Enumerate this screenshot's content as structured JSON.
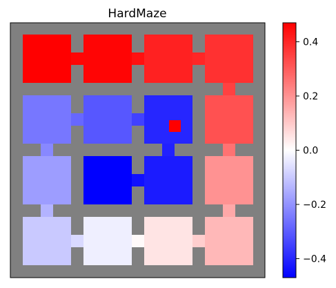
{
  "chart_data": {
    "type": "heatmap",
    "title": "HardMaze",
    "xlabel": "",
    "ylabel": "",
    "grid": false,
    "legend": "colorbar-right",
    "colormap": "bwr",
    "clim": [
      -0.47,
      0.47
    ],
    "colorbar_ticks": [
      {
        "value": 0.4,
        "label": "0.4"
      },
      {
        "value": 0.2,
        "label": "0.2"
      },
      {
        "value": 0.0,
        "label": "0.0"
      },
      {
        "value": -0.2,
        "label": "−0.2"
      },
      {
        "value": -0.4,
        "label": "−0.4"
      }
    ],
    "rows": 4,
    "cols": 4,
    "room_values": [
      [
        0.47,
        0.46,
        0.41,
        0.38
      ],
      [
        -0.25,
        -0.31,
        -0.4,
        0.32
      ],
      [
        -0.18,
        -0.47,
        -0.42,
        0.2
      ],
      [
        -0.1,
        -0.03,
        0.05,
        0.13
      ]
    ],
    "doors": [
      {
        "from": [
          0,
          0
        ],
        "to": [
          0,
          1
        ],
        "value": 0.46
      },
      {
        "from": [
          0,
          1
        ],
        "to": [
          0,
          2
        ],
        "value": 0.44
      },
      {
        "from": [
          0,
          2
        ],
        "to": [
          0,
          3
        ],
        "value": 0.4
      },
      {
        "from": [
          0,
          3
        ],
        "to": [
          1,
          3
        ],
        "value": 0.35
      },
      {
        "from": [
          1,
          0
        ],
        "to": [
          1,
          1
        ],
        "value": -0.28
      },
      {
        "from": [
          1,
          1
        ],
        "to": [
          1,
          2
        ],
        "value": -0.35
      },
      {
        "from": [
          1,
          0
        ],
        "to": [
          2,
          0
        ],
        "value": -0.22
      },
      {
        "from": [
          1,
          2
        ],
        "to": [
          2,
          2
        ],
        "value": -0.41
      },
      {
        "from": [
          1,
          3
        ],
        "to": [
          2,
          3
        ],
        "value": 0.26
      },
      {
        "from": [
          2,
          1
        ],
        "to": [
          2,
          2
        ],
        "value": -0.44
      },
      {
        "from": [
          2,
          0
        ],
        "to": [
          3,
          0
        ],
        "value": -0.14
      },
      {
        "from": [
          2,
          3
        ],
        "to": [
          3,
          3
        ],
        "value": 0.16
      },
      {
        "from": [
          3,
          0
        ],
        "to": [
          3,
          1
        ],
        "value": -0.07
      },
      {
        "from": [
          3,
          1
        ],
        "to": [
          3,
          2
        ],
        "value": 0.01
      },
      {
        "from": [
          3,
          2
        ],
        "to": [
          3,
          3
        ],
        "value": 0.09
      }
    ],
    "goal_marker": {
      "room": [
        1,
        2
      ],
      "value": 0.47
    }
  }
}
